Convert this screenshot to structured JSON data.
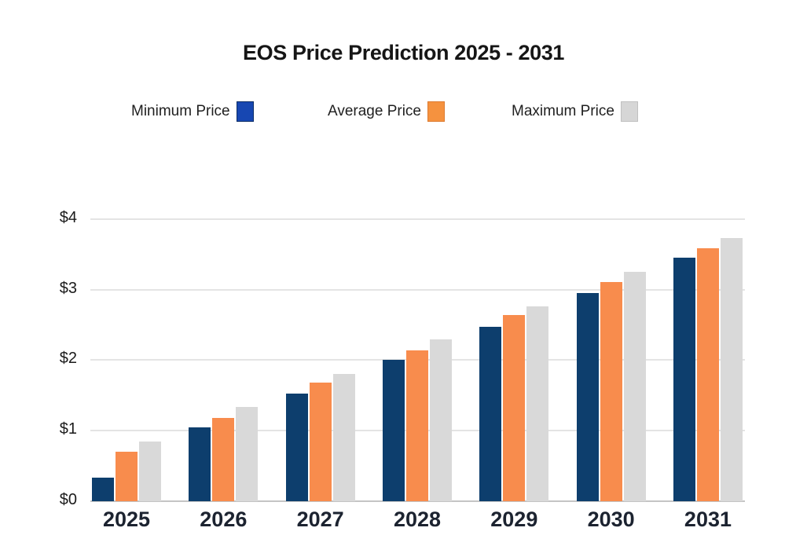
{
  "chart_data": {
    "type": "bar",
    "title": "EOS Price Prediction 2025 - 2031",
    "categories": [
      "2025",
      "2026",
      "2027",
      "2028",
      "2029",
      "2030",
      "2031"
    ],
    "series": [
      {
        "name": "Minimum Price",
        "color": "#0D3E6D",
        "legend_color": "#1747B2",
        "legend_border": "#0A2C66",
        "values": [
          0.33,
          1.05,
          1.53,
          2.0,
          2.47,
          2.95,
          3.45
        ]
      },
      {
        "name": "Average Price",
        "color": "#F88C4D",
        "legend_color": "#F5923F",
        "legend_border": "#DD7B30",
        "values": [
          0.7,
          1.18,
          1.68,
          2.14,
          2.64,
          3.11,
          3.59
        ]
      },
      {
        "name": "Maximum Price",
        "color": "#D9D9D9",
        "legend_color": "#D6D6D6",
        "legend_border": "#C0C0C0",
        "values": [
          0.85,
          1.34,
          1.8,
          2.29,
          2.76,
          3.25,
          3.73
        ]
      }
    ],
    "xlabel": "",
    "ylabel": "",
    "y_ticks": [
      "$0",
      "$1",
      "$2",
      "$3",
      "$4"
    ],
    "ylim": [
      0,
      4
    ],
    "grid": true,
    "legend_position": "top",
    "background_color": "#FFFFFF",
    "gridline_color": "#E4E4E4",
    "axis_line_color": "#C4C4C4",
    "text_color": "#1B1B1B"
  }
}
